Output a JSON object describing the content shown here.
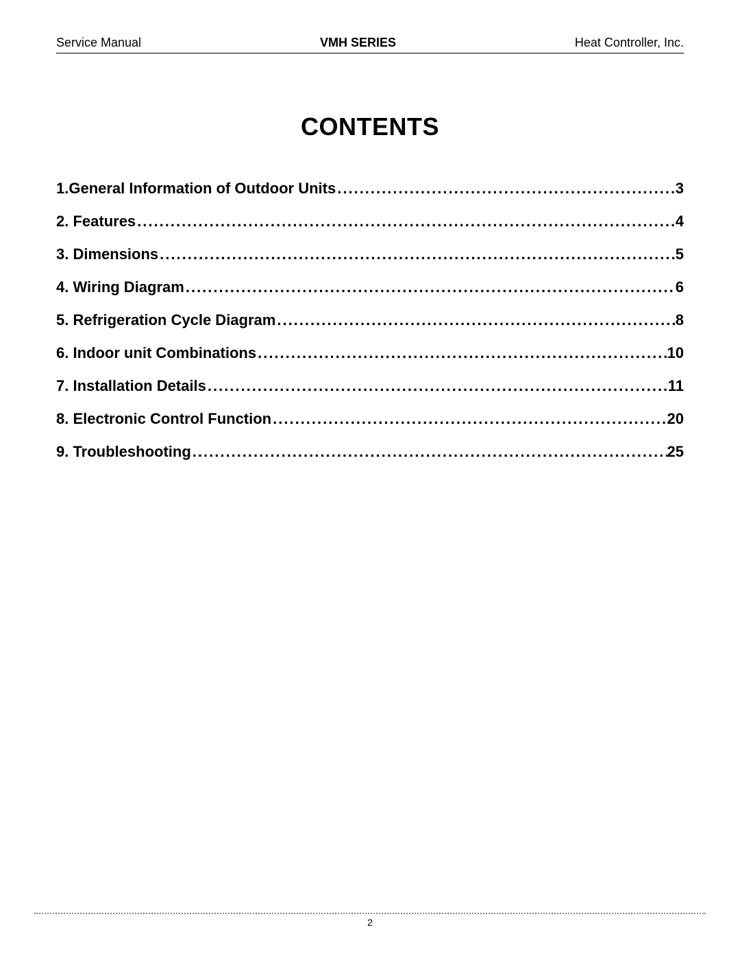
{
  "header": {
    "left": "Service Manual",
    "center": "VMH SERIES",
    "right": "Heat Controller, Inc."
  },
  "title": "CONTENTS",
  "toc": [
    {
      "label": "1.General Information of Outdoor Units",
      "page": "3"
    },
    {
      "label": "2. Features",
      "page": "4"
    },
    {
      "label": "3. Dimensions",
      "page": "5"
    },
    {
      "label": "4. Wiring Diagram",
      "page": "6"
    },
    {
      "label": "5. Refrigeration Cycle Diagram",
      "page": "8"
    },
    {
      "label": "6. Indoor unit Combinations",
      "page": "10"
    },
    {
      "label": "7. Installation Details",
      "page": "11"
    },
    {
      "label": "8. Electronic Control Function",
      "page": "20"
    },
    {
      "label": "9. Troubleshooting",
      "page": "25"
    }
  ],
  "footer": {
    "pageNumber": "2"
  }
}
